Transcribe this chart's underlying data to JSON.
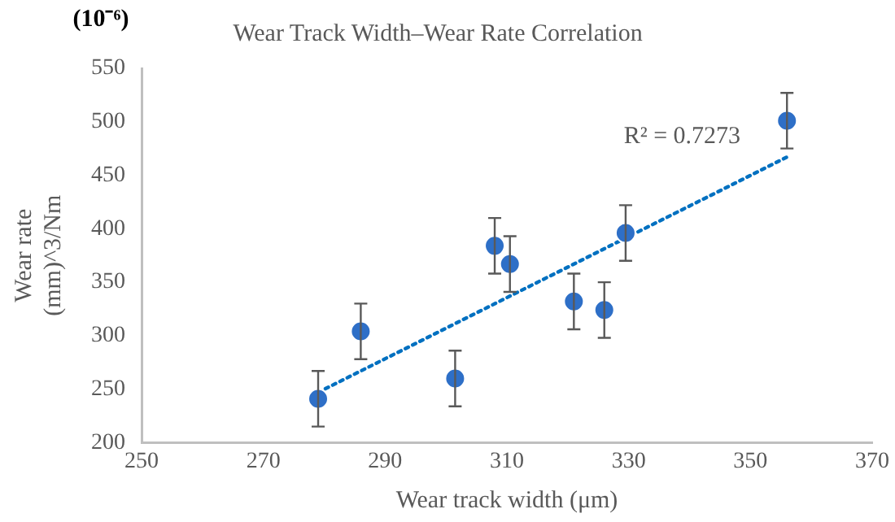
{
  "chart_data": {
    "type": "scatter",
    "title": "Wear Track Width–Wear Rate Correlation",
    "xlabel": "Wear track width (μm)",
    "ylabel": "Wear rate\n(mm)^3/Nm",
    "annotations": [
      "(10⁻⁶)",
      "R² = 0.7273"
    ],
    "xlim": [
      250,
      370
    ],
    "xticks": [
      250,
      270,
      290,
      310,
      330,
      350,
      370
    ],
    "ylim": [
      200,
      550
    ],
    "yticks": [
      200,
      250,
      300,
      350,
      400,
      450,
      500,
      550
    ],
    "grid": false,
    "marker": "circle",
    "series": [
      {
        "color": "#2e6fc7",
        "x": [
          279,
          286,
          301.5,
          308,
          310.5,
          321,
          326,
          329.5,
          356
        ],
        "values": [
          241,
          304,
          260,
          384,
          367,
          332,
          324,
          396,
          501
        ],
        "errors": [
          26,
          26,
          26,
          26,
          26,
          26,
          26,
          26,
          26
        ]
      },
      {
        "type": "line",
        "color": "#0070c0",
        "line_style": "dotted",
        "marker": "none",
        "x": [
          279,
          356
        ],
        "values": [
          247,
          467
        ]
      }
    ]
  }
}
